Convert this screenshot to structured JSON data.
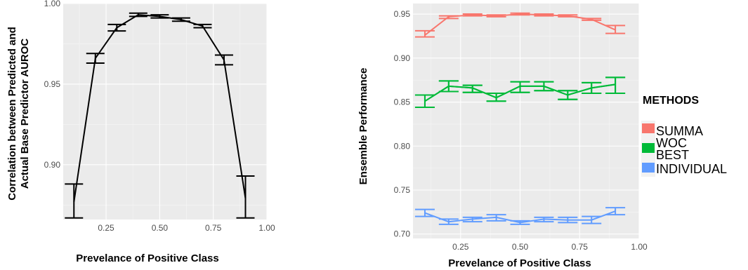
{
  "chart_data": [
    {
      "type": "line",
      "xlabel": "Prevelance of Positive Class",
      "ylabel_lines": [
        "Correlation between Predicted and",
        "Actual Base Predictor AUROC"
      ],
      "xlim": [
        0.05,
        1.0
      ],
      "ylim": [
        0.866,
        1.0
      ],
      "xticks": [
        0.25,
        0.5,
        0.75,
        1.0
      ],
      "xtick_labels": [
        "0.25",
        "0.50",
        "0.75",
        "1.00"
      ],
      "yticks": [
        0.9,
        0.95,
        1.0
      ],
      "ytick_labels": [
        "0.90",
        "0.95",
        "1.00"
      ],
      "grid": true,
      "line_color": "#000000",
      "x": [
        0.1,
        0.2,
        0.3,
        0.4,
        0.5,
        0.6,
        0.7,
        0.8,
        0.9
      ],
      "y": [
        0.877,
        0.966,
        0.985,
        0.993,
        0.992,
        0.99,
        0.986,
        0.965,
        0.879
      ],
      "ymin": [
        0.867,
        0.963,
        0.983,
        0.992,
        0.991,
        0.989,
        0.985,
        0.962,
        0.867
      ],
      "ymax": [
        0.888,
        0.969,
        0.987,
        0.994,
        0.993,
        0.991,
        0.987,
        0.968,
        0.893
      ]
    },
    {
      "type": "line",
      "xlabel": "Prevelance of Positive Class",
      "ylabel": "Ensemble Performance",
      "xlim": [
        0.05,
        1.0
      ],
      "ylim": [
        0.695,
        0.962
      ],
      "xticks": [
        0.25,
        0.5,
        0.75,
        1.0
      ],
      "xtick_labels": [
        "0.25",
        "0.50",
        "0.75",
        "1.00"
      ],
      "yticks": [
        0.7,
        0.75,
        0.8,
        0.85,
        0.9,
        0.95
      ],
      "ytick_labels": [
        "0.70",
        "0.75",
        "0.80",
        "0.85",
        "0.90",
        "0.95"
      ],
      "grid": true,
      "legend": {
        "title": "METHODS",
        "placement": "right",
        "entries": [
          "SUMMA",
          "WOC",
          "BEST",
          "INDIVIDUAL"
        ]
      },
      "series": [
        {
          "name": "SUMMA",
          "color": "#F8766D",
          "x": [
            0.1,
            0.2,
            0.3,
            0.4,
            0.5,
            0.6,
            0.7,
            0.8,
            0.9
          ],
          "y": [
            0.926,
            0.947,
            0.949,
            0.948,
            0.95,
            0.949,
            0.948,
            0.944,
            0.932
          ],
          "ymin": [
            0.924,
            0.945,
            0.948,
            0.947,
            0.949,
            0.948,
            0.947,
            0.943,
            0.928
          ],
          "ymax": [
            0.931,
            0.948,
            0.95,
            0.949,
            0.951,
            0.95,
            0.949,
            0.945,
            0.937
          ]
        },
        {
          "name": "WOC",
          "color": "#00BA38",
          "x": [
            0.1,
            0.2,
            0.3,
            0.4,
            0.5,
            0.6,
            0.7,
            0.8,
            0.9
          ],
          "y": [
            0.851,
            0.868,
            0.866,
            0.855,
            0.868,
            0.868,
            0.858,
            0.866,
            0.87
          ],
          "ymin": [
            0.844,
            0.862,
            0.861,
            0.851,
            0.861,
            0.863,
            0.853,
            0.86,
            0.86
          ],
          "ymax": [
            0.858,
            0.874,
            0.869,
            0.86,
            0.873,
            0.873,
            0.863,
            0.872,
            0.878
          ]
        },
        {
          "name": "BEST",
          "color": "#00BA38",
          "x": [
            0.1,
            0.2,
            0.3,
            0.4,
            0.5,
            0.6,
            0.7,
            0.8,
            0.9
          ],
          "y": [
            0.851,
            0.868,
            0.866,
            0.855,
            0.868,
            0.868,
            0.858,
            0.866,
            0.87
          ],
          "ymin": [
            0.844,
            0.862,
            0.861,
            0.851,
            0.861,
            0.863,
            0.853,
            0.86,
            0.86
          ],
          "ymax": [
            0.858,
            0.874,
            0.869,
            0.86,
            0.873,
            0.873,
            0.863,
            0.872,
            0.878
          ]
        },
        {
          "name": "INDIVIDUAL",
          "color": "#619CFF",
          "x": [
            0.1,
            0.2,
            0.3,
            0.4,
            0.5,
            0.6,
            0.7,
            0.8,
            0.9
          ],
          "y": [
            0.724,
            0.714,
            0.717,
            0.719,
            0.713,
            0.717,
            0.716,
            0.716,
            0.726
          ],
          "ymin": [
            0.72,
            0.711,
            0.714,
            0.715,
            0.711,
            0.714,
            0.713,
            0.712,
            0.722
          ],
          "ymax": [
            0.728,
            0.717,
            0.719,
            0.722,
            0.715,
            0.719,
            0.719,
            0.72,
            0.73
          ]
        }
      ]
    }
  ]
}
